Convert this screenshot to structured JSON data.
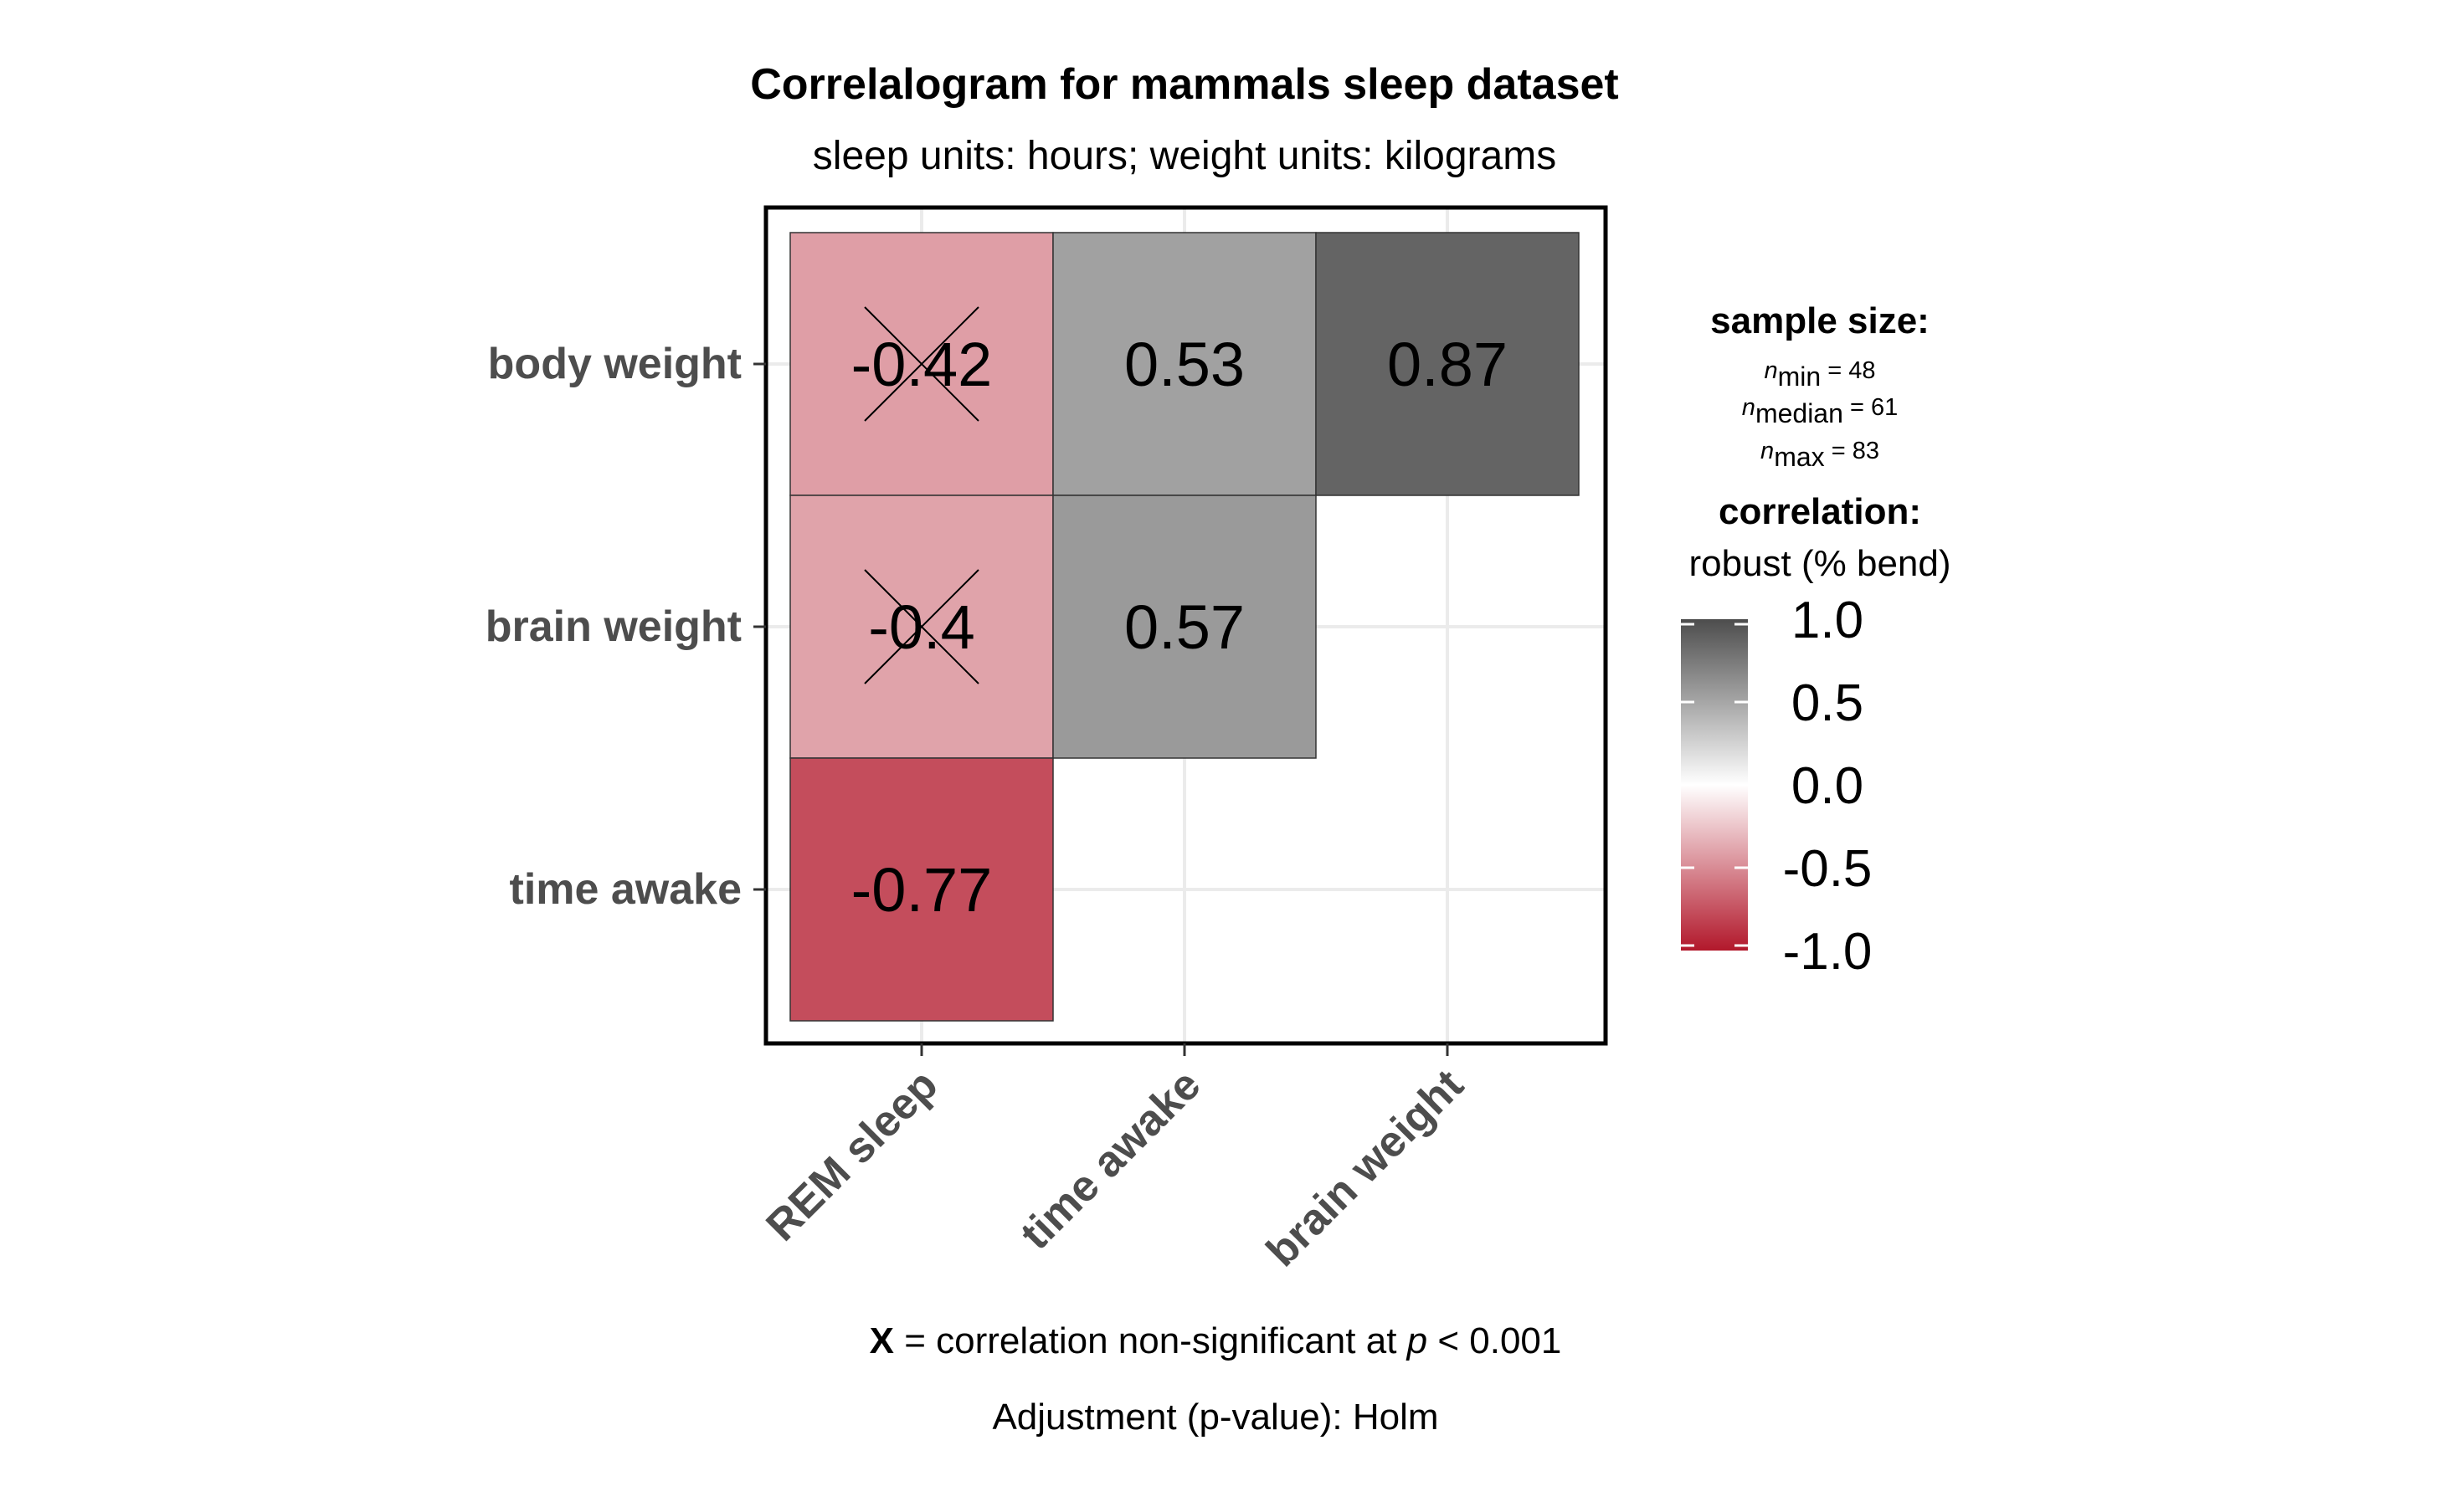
{
  "chart_data": {
    "type": "heatmap",
    "title": "Correlalogram for mammals sleep dataset",
    "subtitle": "sleep units: hours; weight units: kilograms",
    "x_categories": [
      "REM sleep",
      "time awake",
      "brain weight"
    ],
    "y_categories": [
      "body weight",
      "brain weight",
      "time awake"
    ],
    "cells": [
      {
        "x": "REM sleep",
        "y": "body weight",
        "value": -0.42,
        "label": "-0.42",
        "non_significant": true
      },
      {
        "x": "time awake",
        "y": "body weight",
        "value": 0.53,
        "label": "0.53",
        "non_significant": false
      },
      {
        "x": "brain weight",
        "y": "body weight",
        "value": 0.87,
        "label": "0.87",
        "non_significant": false
      },
      {
        "x": "REM sleep",
        "y": "brain weight",
        "value": -0.4,
        "label": "-0.4",
        "non_significant": true
      },
      {
        "x": "time awake",
        "y": "brain weight",
        "value": 0.57,
        "label": "0.57",
        "non_significant": false
      },
      {
        "x": "REM sleep",
        "y": "time awake",
        "value": -0.77,
        "label": "-0.77",
        "non_significant": false
      }
    ],
    "color_scale": {
      "low": "#b2182b",
      "mid": "#ffffff",
      "high": "#4d4d4d",
      "limits": [
        -1.0,
        1.0
      ],
      "ticks": [
        1.0,
        0.5,
        0.0,
        -0.5,
        -1.0
      ],
      "tick_labels": [
        "1.0",
        "0.5",
        "0.0",
        "-0.5",
        "-1.0"
      ]
    },
    "legend": {
      "placement": "right",
      "sample_size_title": "sample size:",
      "n_min": {
        "symbol": "n",
        "subscript": "min",
        "text": " = 48"
      },
      "n_median": {
        "symbol": "n",
        "subscript": "median",
        "text": " = 61"
      },
      "n_max": {
        "symbol": "n",
        "subscript": "max",
        "text": " = 83"
      },
      "correlation_title": "correlation:",
      "correlation_type": "robust (% bend)"
    },
    "caption": {
      "x_mark": "X",
      "text_before_p": " = correlation non-significant at ",
      "p_symbol": "p",
      "text_after_p": " < 0.001",
      "adjustment": "Adjustment (p-value): Holm"
    },
    "grid": true
  }
}
